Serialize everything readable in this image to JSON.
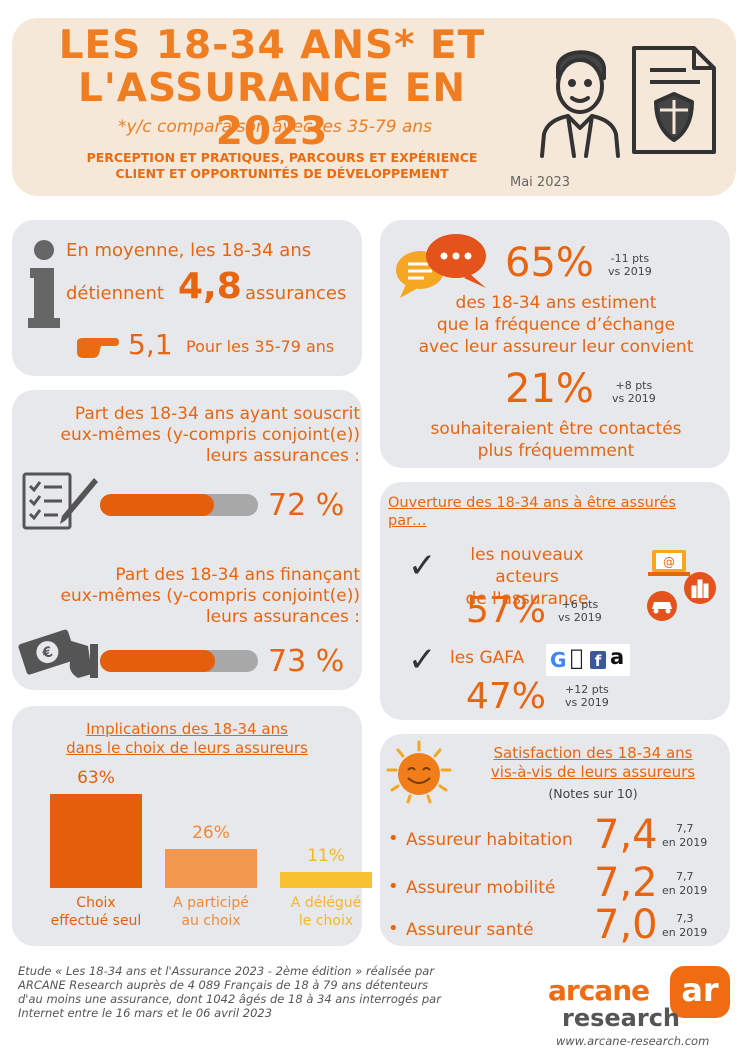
{
  "header": {
    "title_line1": "LES 18-34 ANS* ET",
    "title_line2": "L'ASSURANCE EN 2023",
    "subtitle": "*y/c comparaison avec les 35-79 ans",
    "tagline_line1": "PERCEPTION ET PRATIQUES, PARCOURS ET EXPÉRIENCE",
    "tagline_line2": "CLIENT ET OPPORTUNITÉS DE DÉVELOPPEMENT",
    "date": "Mai 2023"
  },
  "average": {
    "line1": "En moyenne, les 18-34 ans",
    "line2_pre": "détiennent",
    "value": "4,8",
    "line2_post": "assurances",
    "compare_value": "5,1",
    "compare_label": "Pour les 35-79 ans"
  },
  "subscribed": {
    "line1": "Part des 18-34 ans ayant souscrit",
    "line2": "eux-mêmes (y-compris conjoint(e))",
    "line3": "leurs assurances  :",
    "value_label": "72 %",
    "value": 72
  },
  "financing": {
    "line1": "Part des 18-34 ans finançant",
    "line2": "eux-mêmes (y-compris conjoint(e))",
    "line3": "leurs assurances  :",
    "value_label": "73 %",
    "value": 73
  },
  "exchange": {
    "pct1": "65%",
    "delta1_line1": "-11 pts",
    "delta1_line2": "vs 2019",
    "text1_line1": "des 18-34 ans estiment",
    "text1_line2": "que la fréquence d’échange",
    "text1_line3": "avec leur assureur leur convient",
    "pct2": "21%",
    "delta2_line1": "+8 pts",
    "delta2_line2": "vs 2019",
    "text2_line1": "souhaiteraient être contactés",
    "text2_line2": "plus fréquemment"
  },
  "openness": {
    "title_line1": "Ouverture des 18-34 ans à être assurés",
    "title_line2": "par…",
    "item1_line1": "les nouveaux acteurs",
    "item1_line2": "de l'assurance",
    "item1_pct": "57%",
    "item1_delta1": "+6 pts",
    "item1_delta2": "vs 2019",
    "item2_label": "les GAFA",
    "item2_pct": "47%",
    "item2_delta1": "+12 pts",
    "item2_delta2": "vs 2019",
    "gafa_g": "G",
    "gafa_f": "f",
    "gafa_a": "a"
  },
  "involvement": {
    "title_line1": "Implications des 18-34 ans",
    "title_line2": "dans le choix de leurs assureurs",
    "bars": [
      {
        "pct": "63%",
        "value": 63,
        "label1": "Choix",
        "label2": "effectué seul",
        "color": "#e35f0c",
        "label_color": "#e35f0c"
      },
      {
        "pct": "26%",
        "value": 26,
        "label1": "A participé",
        "label2": "au choix",
        "color": "#f2984e",
        "label_color": "#f08a3a"
      },
      {
        "pct": "11%",
        "value": 11,
        "label1": "A délégué",
        "label2": "le choix",
        "color": "#f8c132",
        "label_color": "#f6b52a"
      }
    ]
  },
  "satisfaction": {
    "title_line1": "Satisfaction  des  18-34  ans",
    "title_line2": "vis-à-vis de leurs assureurs",
    "note": "(Notes sur 10)",
    "rows": [
      {
        "label": "Assureur habitation",
        "score": "7,4",
        "prev": "7,7",
        "prev_label": "en 2019"
      },
      {
        "label": "Assureur mobilité",
        "score": "7,2",
        "prev": "7,7",
        "prev_label": "en 2019"
      },
      {
        "label": "Assureur santé",
        "score": "7,0",
        "prev": "7,3",
        "prev_label": "en 2019"
      }
    ]
  },
  "footer": {
    "line1": "Etude « Les 18-34 ans et l'Assurance 2023 - 2ème édition » réalisée par",
    "line2": "ARCANE Research auprès de 4 089 Français de 18 à 79 ans détenteurs",
    "line3": "d'au moins une assurance, dont 1042 âgés de 18 à 34 ans interrogés par",
    "line4": "Internet entre le 16 mars et le 06 avril 2023",
    "logo_word1": "arcane",
    "logo_word2": "research",
    "logo_mark": "ar",
    "url": "www.arcane-research.com"
  }
}
